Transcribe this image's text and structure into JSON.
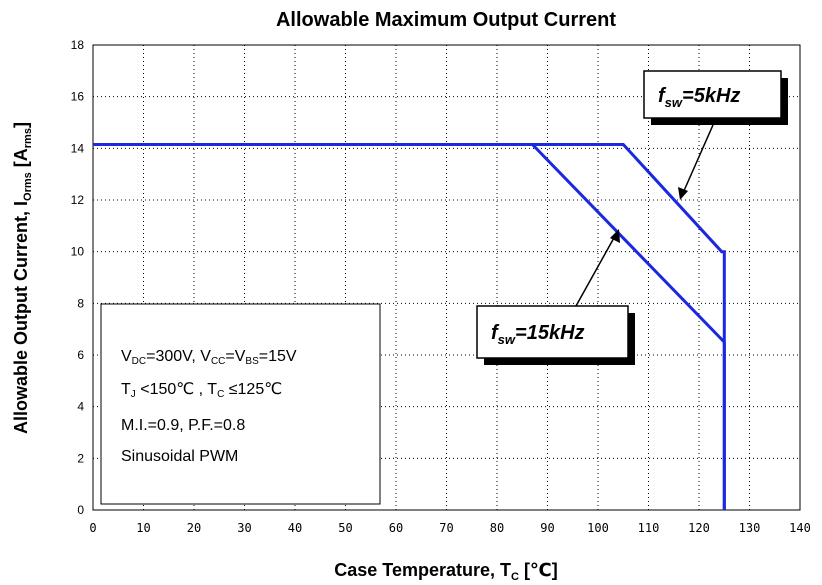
{
  "chart_data": {
    "type": "line",
    "title": "Allowable Maximum Output Current",
    "xlabel": {
      "main": "Case Temperature, T",
      "sub": "C",
      "unit": " [℃]"
    },
    "ylabel": {
      "main": "Allowable Output Current, I",
      "sub": "Orms",
      "unit_open": " [A",
      "unit_sub": "rms",
      "unit_close": "]"
    },
    "xlim": [
      0,
      140
    ],
    "ylim": [
      0,
      18
    ],
    "x_ticks": [
      "0",
      "10",
      "20",
      "30",
      "40",
      "50",
      "60",
      "70",
      "80",
      "90",
      "100",
      "110",
      "120",
      "130",
      "140"
    ],
    "y_ticks": [
      "0",
      "2",
      "4",
      "6",
      "8",
      "10",
      "12",
      "14",
      "16",
      "18"
    ],
    "grid": true,
    "series": [
      {
        "name": "f_sw=5kHz",
        "points": [
          [
            0,
            14.15
          ],
          [
            105,
            14.15
          ],
          [
            124.5,
            10
          ],
          [
            125,
            10
          ],
          [
            125,
            0
          ]
        ]
      },
      {
        "name": "f_sw=15kHz",
        "points": [
          [
            0,
            14.15
          ],
          [
            87,
            14.15
          ],
          [
            125,
            6.5
          ],
          [
            125,
            0
          ]
        ]
      }
    ],
    "callouts": [
      {
        "id": "5khz",
        "f": "f",
        "sub": "sw",
        "value": "=5kHz"
      },
      {
        "id": "15khz",
        "f": "f",
        "sub": "sw",
        "value": "=15kHz"
      }
    ],
    "conditions": {
      "line1": {
        "a": "V",
        "a_sub": "DC",
        "b": "=300V, V",
        "b_sub": "CC",
        "c": "=V",
        "c_sub": "BS",
        "d": "=15V"
      },
      "line2": {
        "a": "T",
        "a_sub": "J",
        "b": " <150℃  , T",
        "b_sub": "C",
        "c": " ≤125℃"
      },
      "line3": "M.I.=0.9, P.F.=0.8",
      "line4": "Sinusoidal PWM"
    },
    "line_color": "#1a28e0"
  }
}
